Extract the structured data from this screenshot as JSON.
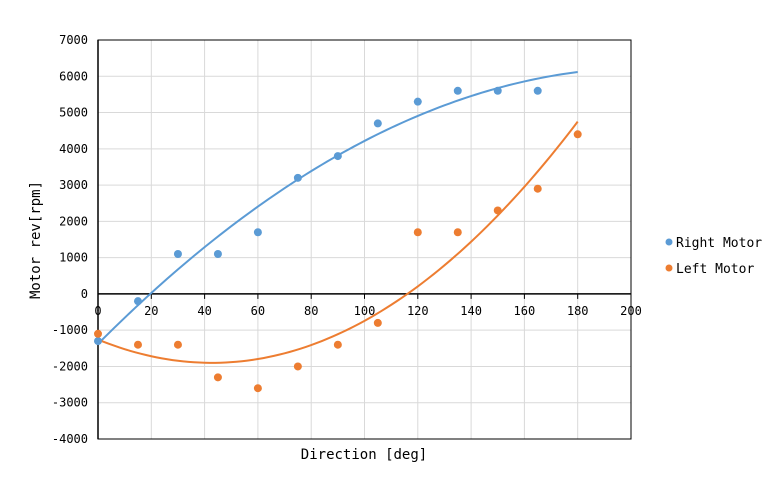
{
  "chart_data": {
    "type": "scatter",
    "title": "",
    "xlabel": "Direction [deg]",
    "ylabel": "Motor rev[rpm]",
    "xlim": [
      0,
      200
    ],
    "ylim": [
      -4000,
      7000
    ],
    "x_ticks": [
      0,
      20,
      40,
      60,
      80,
      100,
      120,
      140,
      160,
      180,
      200
    ],
    "y_ticks": [
      -4000,
      -3000,
      -2000,
      -1000,
      0,
      1000,
      2000,
      3000,
      4000,
      5000,
      6000,
      7000
    ],
    "grid": true,
    "legend_position": "right",
    "series": [
      {
        "name": "Right Motor",
        "color": "#5B9BD5",
        "x": [
          0,
          15,
          30,
          45,
          60,
          75,
          90,
          105,
          120,
          135,
          150,
          165
        ],
        "y": [
          -1300,
          -200,
          1100,
          1100,
          1700,
          3200,
          3800,
          4700,
          5300,
          5600,
          5600,
          5600
        ],
        "trendline": {
          "type": "polynomial",
          "order": 2,
          "x_range": [
            0,
            180
          ]
        }
      },
      {
        "name": "Left Motor",
        "color": "#ED7D31",
        "x": [
          0,
          15,
          30,
          45,
          60,
          75,
          90,
          105,
          120,
          135,
          150,
          165,
          180
        ],
        "y": [
          -1100,
          -1400,
          -1400,
          -2300,
          -2600,
          -2000,
          -1400,
          -800,
          1700,
          1700,
          2300,
          2900,
          4400
        ],
        "trendline": {
          "type": "polynomial",
          "order": 2,
          "x_range": [
            0,
            180
          ]
        }
      }
    ]
  }
}
